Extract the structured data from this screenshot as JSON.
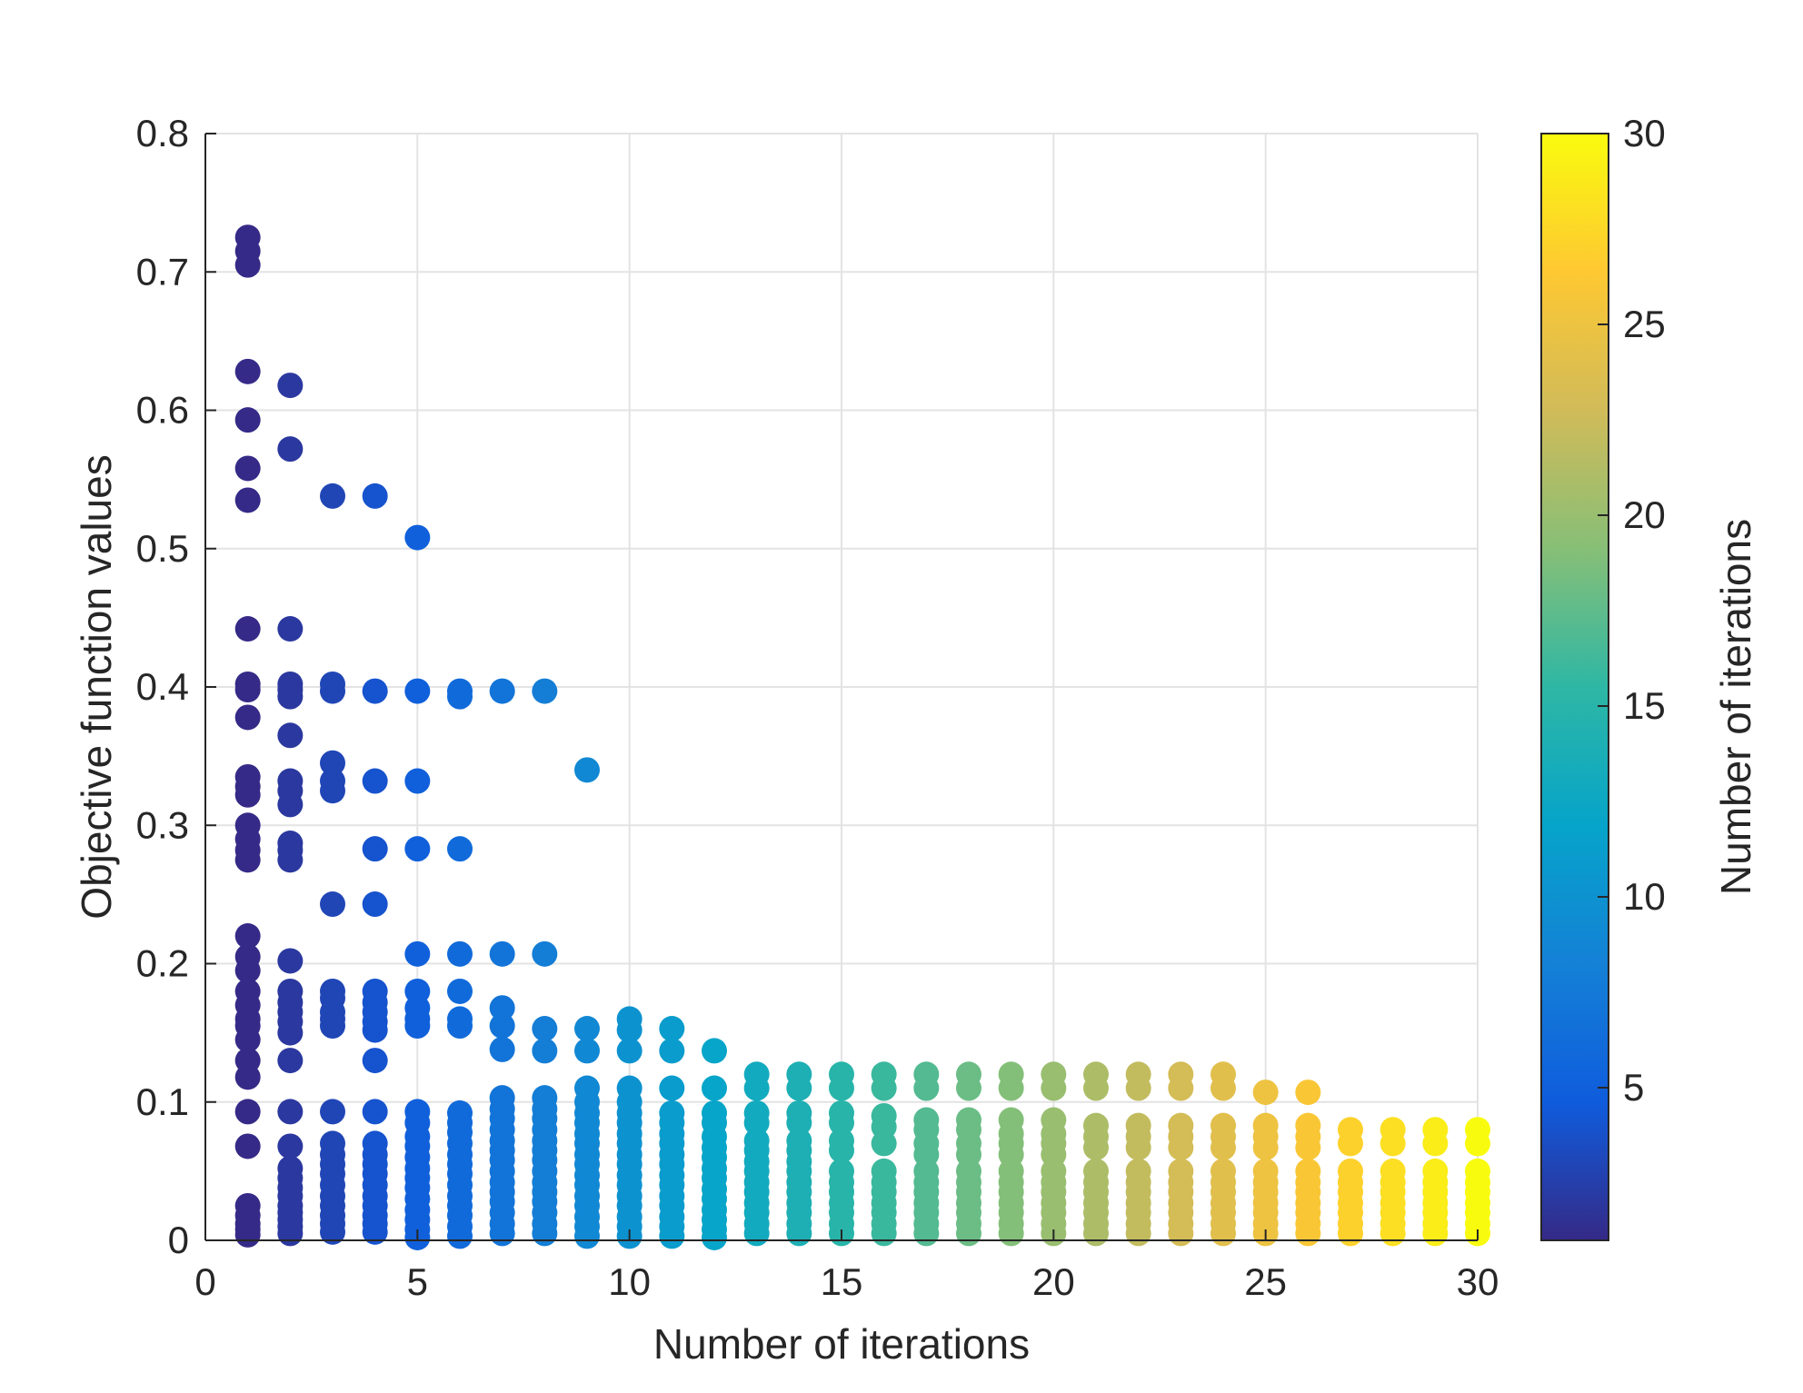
{
  "chart_data": {
    "type": "scatter",
    "title": "",
    "xlabel": "Number of iterations",
    "ylabel": "Objective function values",
    "xlim": [
      0,
      30
    ],
    "ylim": [
      0,
      0.8
    ],
    "x_ticks": [
      0,
      5,
      10,
      15,
      20,
      25,
      30
    ],
    "y_ticks": [
      0,
      0.1,
      0.2,
      0.3,
      0.4,
      0.5,
      0.6,
      0.7,
      0.8
    ],
    "x_tick_labels": [
      "0",
      "5",
      "10",
      "15",
      "20",
      "25",
      "30"
    ],
    "y_tick_labels": [
      "0",
      "0.1",
      "0.2",
      "0.3",
      "0.4",
      "0.5",
      "0.6",
      "0.7",
      "0.8"
    ],
    "grid": true,
    "colormap": "parula",
    "colormap_stops": [
      "#352a87",
      "#0f5cdd",
      "#1481d6",
      "#06a4ca",
      "#2eb7a4",
      "#87bf77",
      "#d1bb59",
      "#fec832",
      "#f9fb0e"
    ],
    "colorbar": {
      "label": "Number of iterations",
      "limits": [
        1,
        30
      ],
      "ticks": [
        5,
        10,
        15,
        20,
        25,
        30
      ],
      "tick_labels": [
        "5",
        "10",
        "15",
        "20",
        "25",
        "30"
      ],
      "location": "right"
    },
    "series": [
      {
        "x": 1,
        "y": [
          0.725,
          0.715,
          0.705,
          0.628,
          0.593,
          0.558,
          0.535,
          0.442,
          0.402,
          0.398,
          0.378,
          0.335,
          0.328,
          0.322,
          0.3,
          0.29,
          0.282,
          0.275,
          0.22,
          0.205,
          0.195,
          0.18,
          0.17,
          0.16,
          0.155,
          0.145,
          0.13,
          0.118,
          0.093,
          0.068,
          0.025,
          0.018,
          0.012,
          0.008,
          0.004
        ]
      },
      {
        "x": 2,
        "y": [
          0.618,
          0.572,
          0.442,
          0.402,
          0.398,
          0.393,
          0.365,
          0.332,
          0.325,
          0.315,
          0.287,
          0.282,
          0.275,
          0.202,
          0.18,
          0.172,
          0.165,
          0.158,
          0.15,
          0.13,
          0.093,
          0.068,
          0.052,
          0.045,
          0.038,
          0.032,
          0.025,
          0.02,
          0.015,
          0.01,
          0.005
        ]
      },
      {
        "x": 3,
        "y": [
          0.538,
          0.402,
          0.397,
          0.345,
          0.332,
          0.325,
          0.243,
          0.18,
          0.175,
          0.165,
          0.16,
          0.155,
          0.093,
          0.07,
          0.062,
          0.055,
          0.048,
          0.04,
          0.032,
          0.025,
          0.018,
          0.012,
          0.006
        ]
      },
      {
        "x": 4,
        "y": [
          0.538,
          0.397,
          0.332,
          0.283,
          0.243,
          0.18,
          0.172,
          0.165,
          0.158,
          0.152,
          0.13,
          0.093,
          0.07,
          0.062,
          0.055,
          0.048,
          0.04,
          0.032,
          0.025,
          0.018,
          0.012,
          0.006
        ]
      },
      {
        "x": 5,
        "y": [
          0.508,
          0.397,
          0.332,
          0.283,
          0.207,
          0.18,
          0.168,
          0.16,
          0.155,
          0.093,
          0.085,
          0.075,
          0.068,
          0.06,
          0.052,
          0.045,
          0.038,
          0.03,
          0.022,
          0.015,
          0.008,
          0.002
        ]
      },
      {
        "x": 6,
        "y": [
          0.397,
          0.393,
          0.283,
          0.207,
          0.18,
          0.16,
          0.155,
          0.092,
          0.085,
          0.078,
          0.07,
          0.062,
          0.055,
          0.048,
          0.04,
          0.032,
          0.025,
          0.018,
          0.01,
          0.003
        ]
      },
      {
        "x": 7,
        "y": [
          0.397,
          0.207,
          0.168,
          0.155,
          0.138,
          0.103,
          0.095,
          0.088,
          0.08,
          0.072,
          0.065,
          0.058,
          0.05,
          0.042,
          0.035,
          0.028,
          0.02,
          0.012,
          0.005
        ]
      },
      {
        "x": 8,
        "y": [
          0.397,
          0.207,
          0.153,
          0.137,
          0.103,
          0.095,
          0.088,
          0.08,
          0.072,
          0.065,
          0.058,
          0.05,
          0.042,
          0.035,
          0.028,
          0.02,
          0.012,
          0.005
        ]
      },
      {
        "x": 9,
        "y": [
          0.34,
          0.153,
          0.137,
          0.11,
          0.1,
          0.092,
          0.085,
          0.077,
          0.07,
          0.062,
          0.055,
          0.047,
          0.04,
          0.032,
          0.025,
          0.017,
          0.01,
          0.003
        ]
      },
      {
        "x": 10,
        "y": [
          0.16,
          0.152,
          0.137,
          0.11,
          0.1,
          0.092,
          0.085,
          0.077,
          0.07,
          0.062,
          0.055,
          0.047,
          0.04,
          0.032,
          0.025,
          0.017,
          0.01,
          0.003
        ]
      },
      {
        "x": 11,
        "y": [
          0.153,
          0.137,
          0.11,
          0.092,
          0.085,
          0.077,
          0.07,
          0.062,
          0.055,
          0.047,
          0.04,
          0.032,
          0.025,
          0.017,
          0.01,
          0.003
        ]
      },
      {
        "x": 12,
        "y": [
          0.137,
          0.11,
          0.092,
          0.085,
          0.075,
          0.067,
          0.06,
          0.052,
          0.045,
          0.037,
          0.03,
          0.022,
          0.015,
          0.008,
          0.002
        ]
      },
      {
        "x": 13,
        "y": [
          0.12,
          0.11,
          0.092,
          0.085,
          0.072,
          0.065,
          0.057,
          0.05,
          0.042,
          0.035,
          0.027,
          0.02,
          0.012,
          0.005
        ]
      },
      {
        "x": 14,
        "y": [
          0.12,
          0.11,
          0.092,
          0.085,
          0.072,
          0.065,
          0.057,
          0.05,
          0.042,
          0.035,
          0.027,
          0.02,
          0.012,
          0.005
        ]
      },
      {
        "x": 15,
        "y": [
          0.12,
          0.11,
          0.092,
          0.085,
          0.072,
          0.065,
          0.05,
          0.042,
          0.035,
          0.027,
          0.02,
          0.012,
          0.005
        ]
      },
      {
        "x": 16,
        "y": [
          0.12,
          0.11,
          0.09,
          0.082,
          0.07,
          0.05,
          0.042,
          0.035,
          0.027,
          0.02,
          0.012,
          0.005
        ]
      },
      {
        "x": 17,
        "y": [
          0.12,
          0.11,
          0.087,
          0.08,
          0.07,
          0.062,
          0.05,
          0.042,
          0.035,
          0.027,
          0.02,
          0.012,
          0.005
        ]
      },
      {
        "x": 18,
        "y": [
          0.12,
          0.11,
          0.087,
          0.08,
          0.07,
          0.062,
          0.05,
          0.042,
          0.035,
          0.027,
          0.02,
          0.012,
          0.005
        ]
      },
      {
        "x": 19,
        "y": [
          0.12,
          0.11,
          0.087,
          0.077,
          0.07,
          0.062,
          0.05,
          0.042,
          0.035,
          0.027,
          0.02,
          0.012,
          0.005
        ]
      },
      {
        "x": 20,
        "y": [
          0.12,
          0.11,
          0.087,
          0.077,
          0.07,
          0.062,
          0.05,
          0.042,
          0.035,
          0.027,
          0.02,
          0.012,
          0.005
        ]
      },
      {
        "x": 21,
        "y": [
          0.12,
          0.11,
          0.083,
          0.075,
          0.067,
          0.05,
          0.042,
          0.035,
          0.027,
          0.02,
          0.012,
          0.005
        ]
      },
      {
        "x": 22,
        "y": [
          0.12,
          0.11,
          0.083,
          0.075,
          0.067,
          0.05,
          0.042,
          0.035,
          0.027,
          0.02,
          0.012,
          0.005
        ]
      },
      {
        "x": 23,
        "y": [
          0.12,
          0.11,
          0.083,
          0.075,
          0.067,
          0.05,
          0.042,
          0.035,
          0.027,
          0.02,
          0.012,
          0.005
        ]
      },
      {
        "x": 24,
        "y": [
          0.12,
          0.11,
          0.083,
          0.075,
          0.067,
          0.05,
          0.042,
          0.035,
          0.027,
          0.02,
          0.012,
          0.005
        ]
      },
      {
        "x": 25,
        "y": [
          0.107,
          0.083,
          0.075,
          0.067,
          0.05,
          0.042,
          0.035,
          0.027,
          0.02,
          0.012,
          0.005
        ]
      },
      {
        "x": 26,
        "y": [
          0.107,
          0.083,
          0.075,
          0.067,
          0.05,
          0.042,
          0.035,
          0.027,
          0.02,
          0.012,
          0.005
        ]
      },
      {
        "x": 27,
        "y": [
          0.08,
          0.07,
          0.05,
          0.042,
          0.035,
          0.027,
          0.02,
          0.012,
          0.005
        ]
      },
      {
        "x": 28,
        "y": [
          0.08,
          0.07,
          0.05,
          0.042,
          0.035,
          0.027,
          0.02,
          0.012,
          0.005
        ]
      },
      {
        "x": 29,
        "y": [
          0.08,
          0.07,
          0.05,
          0.042,
          0.035,
          0.027,
          0.02,
          0.012,
          0.005
        ]
      },
      {
        "x": 30,
        "y": [
          0.08,
          0.07,
          0.05,
          0.042,
          0.035,
          0.027,
          0.02,
          0.012,
          0.005
        ]
      }
    ]
  }
}
